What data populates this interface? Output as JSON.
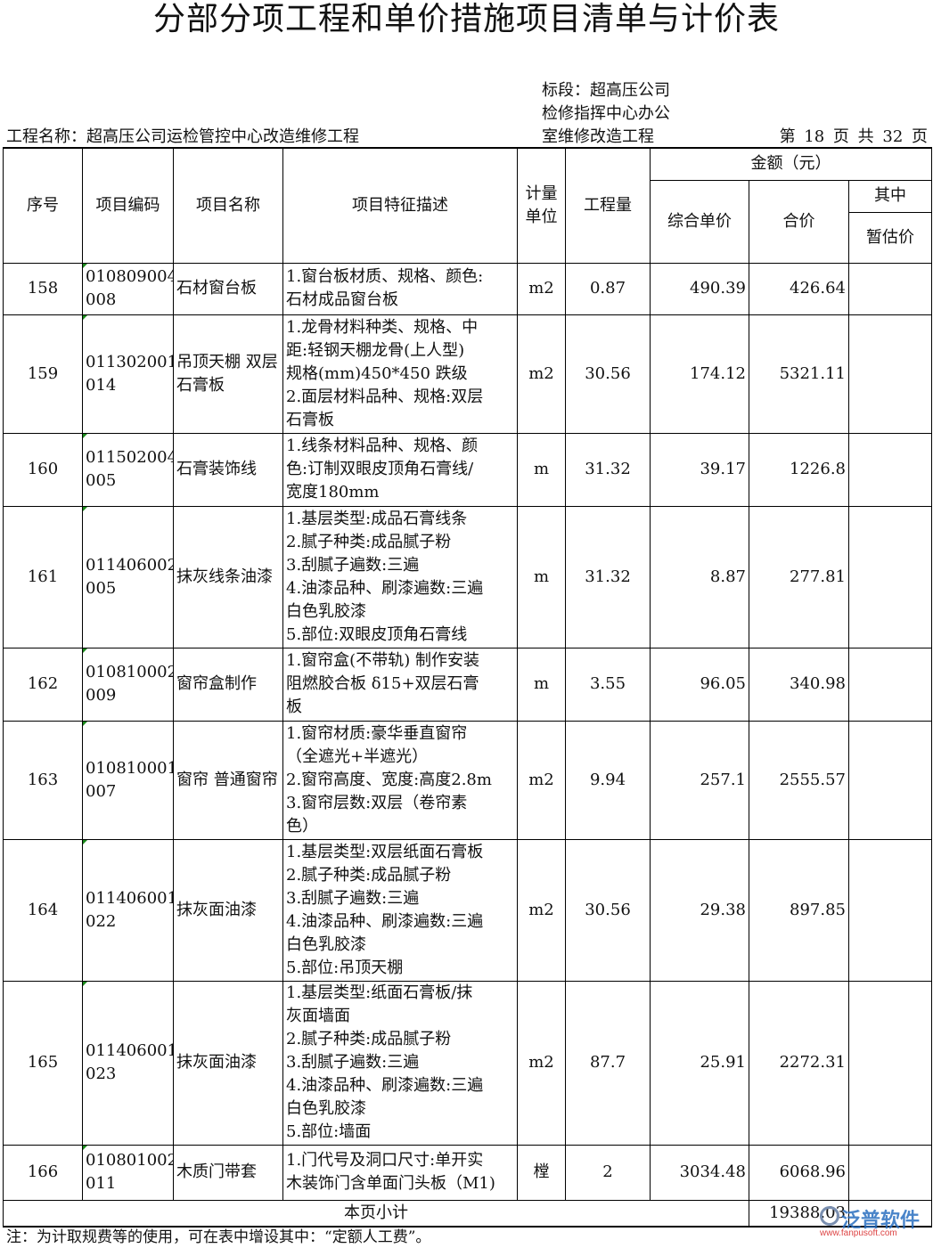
{
  "title": "分部分项工程和单价措施项目清单与计价表",
  "project_name": "工程名称：超高压公司运检管控中心改造维修工程",
  "section_lines": [
    "标段：超高压公司",
    "检修指挥中心办公",
    "室维修改造工程"
  ],
  "page_info": "第 18 页  共 32 页",
  "headers": {
    "seq": "序号",
    "code": "项目编码",
    "name": "项目名称",
    "desc": "项目特征描述",
    "unit": "计量\n单位",
    "qty": "工程量",
    "amount": "金额（元）",
    "unit_price": "综合单价",
    "total": "合价",
    "of_which": "其中",
    "provisional": "暂估价"
  },
  "rows": [
    {
      "seq": "158",
      "code": "010809004\n008",
      "name": "石材窗台板",
      "desc": "1.窗台板材质、规格、颜色:\n石材成品窗台板",
      "unit": "m2",
      "qty": "0.87",
      "unit_price": "490.39",
      "total": "426.64",
      "provisional": ""
    },
    {
      "seq": "159",
      "code": "011302001\n014",
      "name": "吊顶天棚 双层石膏板",
      "desc": "1.龙骨材料种类、规格、中\n距:轻钢天棚龙骨(上人型)\n规格(mm)450*450 跌级\n2.面层材料品种、规格:双层\n石膏板",
      "unit": "m2",
      "qty": "30.56",
      "unit_price": "174.12",
      "total": "5321.11",
      "provisional": ""
    },
    {
      "seq": "160",
      "code": "011502004\n005",
      "name": "石膏装饰线",
      "desc": "1.线条材料品种、规格、颜\n色:订制双眼皮顶角石膏线/\n宽度180mm",
      "unit": "m",
      "qty": "31.32",
      "unit_price": "39.17",
      "total": "1226.8",
      "provisional": ""
    },
    {
      "seq": "161",
      "code": "011406002\n005",
      "name": "抹灰线条油漆",
      "desc": "1.基层类型:成品石膏线条\n2.腻子种类:成品腻子粉\n3.刮腻子遍数:三遍\n4.油漆品种、刷漆遍数:三遍\n白色乳胶漆\n5.部位:双眼皮顶角石膏线",
      "unit": "m",
      "qty": "31.32",
      "unit_price": "8.87",
      "total": "277.81",
      "provisional": ""
    },
    {
      "seq": "162",
      "code": "010810002\n009",
      "name": "窗帘盒制作",
      "desc": "1.窗帘盒(不带轨) 制作安装\n阻燃胶合板 δ15+双层石膏\n板",
      "unit": "m",
      "qty": "3.55",
      "unit_price": "96.05",
      "total": "340.98",
      "provisional": ""
    },
    {
      "seq": "163",
      "code": "010810001\n007",
      "name": "窗帘 普通窗帘",
      "desc": "1.窗帘材质:豪华垂直窗帘\n（全遮光+半遮光）\n2.窗帘高度、宽度:高度2.8m\n3.窗帘层数:双层（卷帘素\n色）",
      "unit": "m2",
      "qty": "9.94",
      "unit_price": "257.1",
      "total": "2555.57",
      "provisional": ""
    },
    {
      "seq": "164",
      "code": "011406001\n022",
      "name": "抹灰面油漆",
      "desc": "1.基层类型:双层纸面石膏板\n2.腻子种类:成品腻子粉\n3.刮腻子遍数:三遍\n4.油漆品种、刷漆遍数:三遍\n白色乳胶漆\n5.部位:吊顶天棚",
      "unit": "m2",
      "qty": "30.56",
      "unit_price": "29.38",
      "total": "897.85",
      "provisional": ""
    },
    {
      "seq": "165",
      "code": "011406001\n023",
      "name": "抹灰面油漆",
      "desc": "1.基层类型:纸面石膏板/抹\n灰面墙面\n2.腻子种类:成品腻子粉\n3.刮腻子遍数:三遍\n4.油漆品种、刷漆遍数:三遍\n白色乳胶漆\n5.部位:墙面",
      "unit": "m2",
      "qty": "87.7",
      "unit_price": "25.91",
      "total": "2272.31",
      "provisional": ""
    },
    {
      "seq": "166",
      "code": "010801002\n011",
      "name": "木质门带套",
      "desc": "1.门代号及洞口尺寸:单开实\n木装饰门含单面门头板（M1)",
      "unit": "樘",
      "qty": "2",
      "unit_price": "3034.48",
      "total": "6068.96",
      "provisional": ""
    }
  ],
  "subtotal": {
    "label": "本页小计",
    "total": "19388.03"
  },
  "note": "注：为计取规费等的使用，可在表中增设其中：“定额人工费”。",
  "watermark": {
    "text": "泛普软件",
    "url": "www.fanpusoft.com"
  }
}
